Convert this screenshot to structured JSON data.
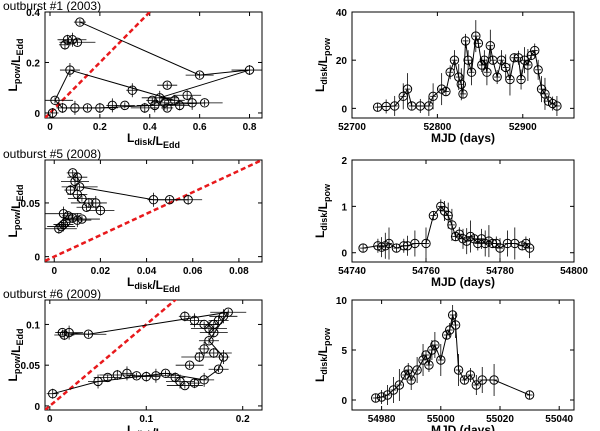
{
  "figure": {
    "description_labels": [
      "outburst #1 (2003)",
      "outburst #5 (2008)",
      "outburst #6 (2009)"
    ]
  },
  "chart_data": [
    {
      "id": "p1l",
      "type": "scatter",
      "title": "outburst #1 (2003)",
      "xlabel": "L_disk/L_Edd",
      "ylabel": "L_pow/L_Edd",
      "xlim": [
        -0.02,
        0.85
      ],
      "ylim": [
        -0.02,
        0.4
      ],
      "xticks": [
        {
          "v": 0,
          "l": "0"
        },
        {
          "v": 0.2,
          "l": "0.2"
        },
        {
          "v": 0.4,
          "l": "0.4"
        },
        {
          "v": 0.6,
          "l": "0.6"
        },
        {
          "v": 0.8,
          "l": "0.8"
        }
      ],
      "yticks": [
        {
          "v": 0,
          "l": "0"
        },
        {
          "v": 0.2,
          "l": "0.2"
        },
        {
          "v": 0.4,
          "l": "0.4"
        }
      ],
      "ref_line": {
        "slope": 1
      },
      "points": [
        [
          0.12,
          0.36
        ],
        [
          0.07,
          0.29
        ],
        [
          0.09,
          0.29
        ],
        [
          0.11,
          0.28
        ],
        [
          0.06,
          0.27
        ],
        [
          0.08,
          0.17
        ],
        [
          0.6,
          0.15
        ],
        [
          0.8,
          0.17
        ],
        [
          0.33,
          0.09
        ],
        [
          0.47,
          0.11
        ],
        [
          0.55,
          0.07
        ],
        [
          0.44,
          0.06
        ],
        [
          0.41,
          0.05
        ],
        [
          0.5,
          0.05
        ],
        [
          0.46,
          0.04
        ],
        [
          0.02,
          0.05
        ],
        [
          0.05,
          0.02
        ],
        [
          0.1,
          0.02
        ],
        [
          0.15,
          0.02
        ],
        [
          0.2,
          0.02
        ],
        [
          0.25,
          0.03
        ],
        [
          0.3,
          0.03
        ],
        [
          0.38,
          0.02
        ],
        [
          0.42,
          0.03
        ],
        [
          0.47,
          0.02
        ],
        [
          0.52,
          0.03
        ],
        [
          0.57,
          0.04
        ],
        [
          0.62,
          0.04
        ],
        [
          0.01,
          0.0
        ]
      ],
      "connect": [
        [
          0.12,
          0.36
        ],
        [
          0.6,
          0.15
        ],
        [
          0.8,
          0.17
        ],
        [
          0.44,
          0.06
        ],
        [
          0.5,
          0.05
        ],
        [
          0.08,
          0.17
        ],
        [
          0.02,
          0.05
        ],
        [
          0.05,
          0.02
        ],
        [
          0.2,
          0.02
        ],
        [
          0.62,
          0.04
        ]
      ]
    },
    {
      "id": "p1r",
      "type": "line",
      "title": "",
      "xlabel": "MJD (days)",
      "ylabel": "L_disk/L_pow",
      "xlim": [
        52700,
        52960
      ],
      "ylim": [
        -4,
        40
      ],
      "xticks": [
        {
          "v": 52700,
          "l": "52700"
        },
        {
          "v": 52800,
          "l": "52800"
        },
        {
          "v": 52900,
          "l": "52900"
        }
      ],
      "yticks": [
        {
          "v": 0,
          "l": "0"
        },
        {
          "v": 20,
          "l": "20"
        },
        {
          "v": 40,
          "l": "40"
        }
      ],
      "points": [
        [
          52730,
          0.5
        ],
        [
          52740,
          0.8
        ],
        [
          52750,
          1
        ],
        [
          52760,
          5
        ],
        [
          52765,
          8
        ],
        [
          52770,
          1
        ],
        [
          52780,
          1
        ],
        [
          52790,
          1
        ],
        [
          52795,
          5
        ],
        [
          52805,
          8
        ],
        [
          52810,
          7
        ],
        [
          52815,
          15
        ],
        [
          52820,
          20
        ],
        [
          52825,
          13
        ],
        [
          52828,
          10
        ],
        [
          52830,
          6
        ],
        [
          52833,
          28
        ],
        [
          52836,
          20
        ],
        [
          52840,
          15
        ],
        [
          52845,
          30
        ],
        [
          52848,
          27
        ],
        [
          52852,
          18
        ],
        [
          52855,
          20
        ],
        [
          52858,
          15
        ],
        [
          52862,
          26
        ],
        [
          52865,
          20
        ],
        [
          52870,
          13
        ],
        [
          52875,
          20
        ],
        [
          52880,
          17
        ],
        [
          52885,
          12
        ],
        [
          52890,
          21
        ],
        [
          52895,
          21
        ],
        [
          52898,
          12
        ],
        [
          52902,
          20
        ],
        [
          52906,
          18
        ],
        [
          52910,
          22
        ],
        [
          52914,
          24
        ],
        [
          52918,
          16
        ],
        [
          52922,
          8
        ],
        [
          52926,
          6
        ],
        [
          52930,
          3
        ],
        [
          52935,
          2
        ],
        [
          52940,
          1
        ]
      ]
    },
    {
      "id": "p2l",
      "type": "scatter",
      "title": "outburst #5 (2008)",
      "xlabel": "L_disk/L_Edd",
      "ylabel": "L_pow/L_Edd",
      "xlim": [
        -0.004,
        0.09
      ],
      "ylim": [
        -0.005,
        0.09
      ],
      "xticks": [
        {
          "v": 0,
          "l": "0"
        },
        {
          "v": 0.02,
          "l": "0.02"
        },
        {
          "v": 0.04,
          "l": "0.04"
        },
        {
          "v": 0.06,
          "l": "0.06"
        },
        {
          "v": 0.08,
          "l": "0.08"
        }
      ],
      "yticks": [
        {
          "v": 0,
          "l": "0"
        },
        {
          "v": 0.05,
          "l": "0.05"
        }
      ],
      "ref_line": {
        "slope": 1
      },
      "points": [
        [
          0.008,
          0.078
        ],
        [
          0.01,
          0.074
        ],
        [
          0.009,
          0.07
        ],
        [
          0.011,
          0.065
        ],
        [
          0.007,
          0.062
        ],
        [
          0.01,
          0.058
        ],
        [
          0.012,
          0.054
        ],
        [
          0.015,
          0.05
        ],
        [
          0.018,
          0.05
        ],
        [
          0.014,
          0.046
        ],
        [
          0.02,
          0.043
        ],
        [
          0.004,
          0.04
        ],
        [
          0.006,
          0.038
        ],
        [
          0.008,
          0.036
        ],
        [
          0.01,
          0.034
        ],
        [
          0.012,
          0.035
        ],
        [
          0.005,
          0.032
        ],
        [
          0.004,
          0.03
        ],
        [
          0.003,
          0.028
        ],
        [
          0.002,
          0.026
        ],
        [
          0.043,
          0.053
        ],
        [
          0.05,
          0.053
        ],
        [
          0.058,
          0.053
        ]
      ],
      "connect": [
        [
          0.011,
          0.065
        ],
        [
          0.043,
          0.053
        ],
        [
          0.05,
          0.053
        ],
        [
          0.058,
          0.053
        ]
      ]
    },
    {
      "id": "p2r",
      "type": "line",
      "title": "",
      "xlabel": "MJD (days)",
      "ylabel": "L_disk/L_pow",
      "xlim": [
        54740,
        54800
      ],
      "ylim": [
        -0.2,
        2
      ],
      "xticks": [
        {
          "v": 54740,
          "l": "54740"
        },
        {
          "v": 54760,
          "l": "54760"
        },
        {
          "v": 54780,
          "l": "54780"
        },
        {
          "v": 54800,
          "l": "54800"
        }
      ],
      "yticks": [
        {
          "v": 0,
          "l": "0"
        },
        {
          "v": 1,
          "l": "1"
        },
        {
          "v": 2,
          "l": "2"
        }
      ],
      "points": [
        [
          54743,
          0.1
        ],
        [
          54747,
          0.15
        ],
        [
          54748,
          0.12
        ],
        [
          54749,
          0.15
        ],
        [
          54750,
          0.2
        ],
        [
          54752,
          0.1
        ],
        [
          54754,
          0.15
        ],
        [
          54755,
          0.15
        ],
        [
          54757,
          0.2
        ],
        [
          54760,
          0.2
        ],
        [
          54762,
          0.8
        ],
        [
          54764,
          1.0
        ],
        [
          54765,
          0.9
        ],
        [
          54766,
          0.8
        ],
        [
          54767,
          0.6
        ],
        [
          54768,
          0.35
        ],
        [
          54769,
          0.4
        ],
        [
          54770,
          0.3
        ],
        [
          54771,
          0.25
        ],
        [
          54772,
          0.35
        ],
        [
          54773,
          0.3
        ],
        [
          54774,
          0.2
        ],
        [
          54775,
          0.3
        ],
        [
          54776,
          0.2
        ],
        [
          54777,
          0.25
        ],
        [
          54778,
          0.2
        ],
        [
          54779,
          0.2
        ],
        [
          54780,
          0.1
        ],
        [
          54782,
          0.2
        ],
        [
          54784,
          0.2
        ],
        [
          54786,
          0.15
        ],
        [
          54787,
          0.2
        ],
        [
          54788,
          0.1
        ]
      ]
    },
    {
      "id": "p3l",
      "type": "scatter",
      "title": "outburst #6 (2009)",
      "xlabel": "L_disk/L_Edd",
      "ylabel": "L_pow/L_Edd",
      "xlim": [
        -0.005,
        0.22
      ],
      "ylim": [
        -0.005,
        0.13
      ],
      "xticks": [
        {
          "v": 0,
          "l": "0"
        },
        {
          "v": 0.1,
          "l": "0.1"
        },
        {
          "v": 0.2,
          "l": "0.2"
        }
      ],
      "yticks": [
        {
          "v": 0,
          "l": "0"
        },
        {
          "v": 0.05,
          "l": "0.05"
        },
        {
          "v": 0.1,
          "l": "0.1"
        }
      ],
      "ref_line": {
        "slope": 1
      },
      "points": [
        [
          0.013,
          0.09
        ],
        [
          0.015,
          0.087
        ],
        [
          0.02,
          0.09
        ],
        [
          0.04,
          0.088
        ],
        [
          0.003,
          0.015
        ],
        [
          0.05,
          0.03
        ],
        [
          0.06,
          0.035
        ],
        [
          0.07,
          0.038
        ],
        [
          0.08,
          0.04
        ],
        [
          0.09,
          0.037
        ],
        [
          0.1,
          0.036
        ],
        [
          0.11,
          0.037
        ],
        [
          0.12,
          0.04
        ],
        [
          0.13,
          0.035
        ],
        [
          0.135,
          0.03
        ],
        [
          0.14,
          0.025
        ],
        [
          0.15,
          0.028
        ],
        [
          0.16,
          0.032
        ],
        [
          0.145,
          0.05
        ],
        [
          0.155,
          0.06
        ],
        [
          0.16,
          0.07
        ],
        [
          0.165,
          0.08
        ],
        [
          0.17,
          0.09
        ],
        [
          0.165,
          0.095
        ],
        [
          0.17,
          0.1
        ],
        [
          0.175,
          0.105
        ],
        [
          0.18,
          0.11
        ],
        [
          0.185,
          0.115
        ],
        [
          0.14,
          0.11
        ],
        [
          0.15,
          0.105
        ],
        [
          0.16,
          0.1
        ],
        [
          0.17,
          0.065
        ],
        [
          0.18,
          0.06
        ],
        [
          0.175,
          0.045
        ]
      ],
      "connect": [
        [
          0.003,
          0.015
        ],
        [
          0.05,
          0.03
        ],
        [
          0.12,
          0.04
        ],
        [
          0.16,
          0.032
        ],
        [
          0.175,
          0.045
        ],
        [
          0.18,
          0.06
        ],
        [
          0.165,
          0.08
        ],
        [
          0.185,
          0.115
        ],
        [
          0.04,
          0.088
        ],
        [
          0.013,
          0.09
        ]
      ]
    },
    {
      "id": "p3r",
      "type": "line",
      "title": "",
      "xlabel": "MJD (days)",
      "ylabel": "L_disk/L_pow",
      "xlim": [
        54970,
        55045
      ],
      "ylim": [
        -1,
        10
      ],
      "xticks": [
        {
          "v": 54980,
          "l": "54980"
        },
        {
          "v": 55000,
          "l": "55000"
        },
        {
          "v": 55020,
          "l": "55020"
        },
        {
          "v": 55040,
          "l": "55040"
        }
      ],
      "yticks": [
        {
          "v": 0,
          "l": "0"
        },
        {
          "v": 5,
          "l": "5"
        },
        {
          "v": 10,
          "l": "10"
        }
      ],
      "points": [
        [
          54978,
          0.2
        ],
        [
          54980,
          0.3
        ],
        [
          54982,
          0.5
        ],
        [
          54984,
          1
        ],
        [
          54986,
          1.5
        ],
        [
          54988,
          2.5
        ],
        [
          54989,
          3
        ],
        [
          54990,
          2
        ],
        [
          54992,
          3
        ],
        [
          54994,
          4
        ],
        [
          54995,
          4.5
        ],
        [
          54996,
          3.5
        ],
        [
          54997,
          5
        ],
        [
          54998,
          5.5
        ],
        [
          55000,
          4
        ],
        [
          55002,
          6.5
        ],
        [
          55003,
          7
        ],
        [
          55004,
          8.5
        ],
        [
          55005,
          7.5
        ],
        [
          55006,
          3
        ],
        [
          55008,
          2
        ],
        [
          55010,
          2.5
        ],
        [
          55012,
          1.5
        ],
        [
          55014,
          2
        ],
        [
          55018,
          2
        ],
        [
          55030,
          0.5
        ]
      ]
    }
  ]
}
